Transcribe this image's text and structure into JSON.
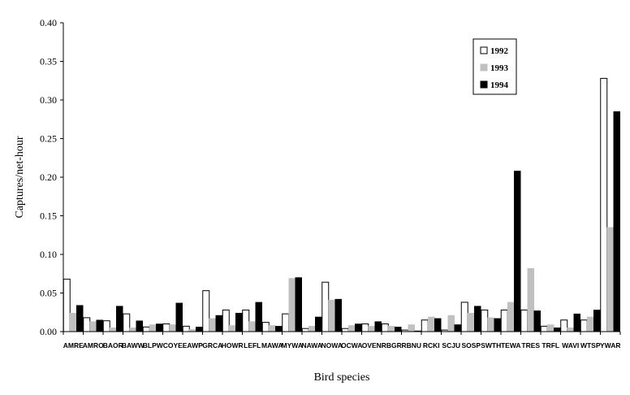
{
  "chart_data": {
    "type": "bar",
    "xlabel": "Bird species",
    "ylabel": "Captures/net-hour",
    "ylim": [
      0,
      0.4
    ],
    "yticks": [
      "0.00",
      "0.05",
      "0.10",
      "0.15",
      "0.20",
      "0.25",
      "0.30",
      "0.35",
      "0.40"
    ],
    "grid": false,
    "legend_position": "top-right",
    "categories": [
      "AMRE",
      "AMRO",
      "BAOR",
      "BAWW",
      "BLPW",
      "COYE",
      "EAWP",
      "GRCA",
      "HOWR",
      "LEFL",
      "MAWA",
      "MYWA",
      "NAWA",
      "NOWA",
      "OCWA",
      "OVEN",
      "RBGR",
      "RBNU",
      "RCKI",
      "SCJU",
      "SOSP",
      "SWTH",
      "TEWA",
      "TRES",
      "TRFL",
      "WAVI",
      "WTSP",
      "YWAR"
    ],
    "series": [
      {
        "name": "1992",
        "color": "#ffffff",
        "values": [
          0.068,
          0.018,
          0.014,
          0.023,
          0.006,
          0.01,
          0.007,
          0.053,
          0.028,
          0.028,
          0.012,
          0.023,
          0.004,
          0.064,
          0.004,
          0.01,
          0.01,
          0.002,
          0.015,
          0.002,
          0.038,
          0.028,
          0.028,
          0.028,
          0.007,
          0.015,
          0.015,
          0.328
        ]
      },
      {
        "name": "1993",
        "color": "#c0c0c0",
        "values": [
          0.024,
          0.013,
          0.005,
          0.005,
          0.009,
          0.009,
          0.003,
          0.017,
          0.008,
          0.013,
          0.008,
          0.069,
          0.007,
          0.041,
          0.008,
          0.007,
          0.007,
          0.009,
          0.019,
          0.021,
          0.024,
          0.018,
          0.038,
          0.082,
          0.009,
          0.005,
          0.019,
          0.135
        ]
      },
      {
        "name": "1994",
        "color": "#000000",
        "values": [
          0.034,
          0.015,
          0.033,
          0.014,
          0.01,
          0.037,
          0.006,
          0.021,
          0.024,
          0.038,
          0.007,
          0.07,
          0.019,
          0.042,
          0.01,
          0.013,
          0.006,
          0.001,
          0.017,
          0.009,
          0.033,
          0.017,
          0.208,
          0.027,
          0.005,
          0.023,
          0.028,
          0.285
        ]
      }
    ]
  }
}
